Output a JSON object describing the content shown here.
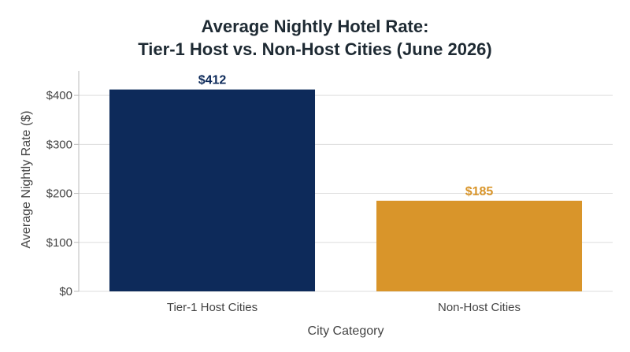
{
  "chart_data": {
    "type": "bar",
    "title": [
      "Average Nightly Hotel Rate:",
      "Tier-1 Host vs. Non-Host Cities (June 2026)"
    ],
    "xlabel": "City Category",
    "ylabel": "Average Nightly Rate ($)",
    "categories": [
      "Tier-1 Host Cities",
      "Non-Host Cities"
    ],
    "values": [
      412,
      185
    ],
    "data_labels": [
      "$412",
      "$185"
    ],
    "colors": [
      "#0d2a5a",
      "#d9952a"
    ],
    "ylim": [
      0,
      450
    ],
    "yticks": [
      0,
      100,
      200,
      300,
      400
    ],
    "ytick_labels": [
      "$0",
      "$100",
      "$200",
      "$300",
      "$400"
    ],
    "grid": "horizontal",
    "legend": "none"
  }
}
